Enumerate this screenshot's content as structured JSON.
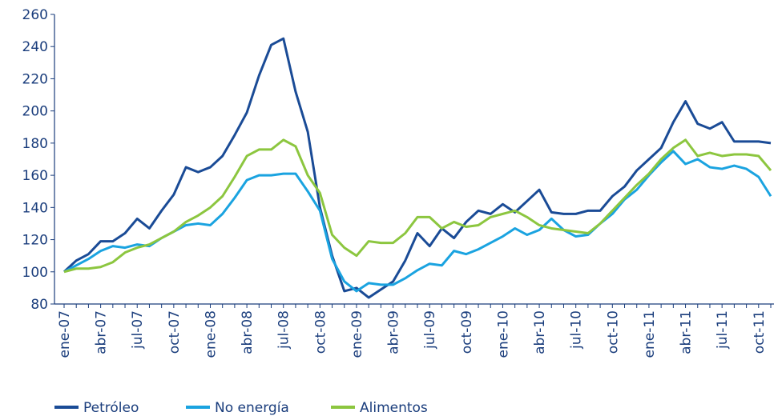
{
  "chart_data": {
    "type": "line",
    "categories": [
      "ene-07",
      null,
      null,
      "abr-07",
      null,
      null,
      "jul-07",
      null,
      null,
      "oct-07",
      null,
      null,
      "ene-08",
      null,
      null,
      "abr-08",
      null,
      null,
      "jul-08",
      null,
      null,
      "oct-08",
      null,
      null,
      "ene-09",
      null,
      null,
      "abr-09",
      null,
      null,
      "jul-09",
      null,
      null,
      "oct-09",
      null,
      null,
      "ene-10",
      null,
      null,
      "abr-10",
      null,
      null,
      "jul-10",
      null,
      null,
      "oct-10",
      null,
      null,
      "ene-11",
      null,
      null,
      "abr-11",
      null,
      null,
      "jul-11",
      null,
      null,
      "oct-11",
      null
    ],
    "series": [
      {
        "name": "Petróleo",
        "color": "#1a4b96",
        "values": [
          100,
          107,
          111,
          119,
          119,
          124,
          133,
          127,
          138,
          148,
          165,
          162,
          165,
          172,
          185,
          199,
          222,
          241,
          245,
          212,
          187,
          140,
          110,
          88,
          90,
          84,
          89,
          94,
          107,
          124,
          116,
          127,
          121,
          131,
          138,
          136,
          142,
          137,
          144,
          151,
          137,
          136,
          136,
          138,
          138,
          147,
          153,
          163,
          170,
          177,
          193,
          206,
          192,
          189,
          193,
          181,
          181,
          181,
          180
        ]
      },
      {
        "name": "No energía",
        "color": "#1aa3e0",
        "values": [
          100,
          104,
          108,
          113,
          116,
          115,
          117,
          116,
          121,
          125,
          129,
          130,
          129,
          136,
          146,
          157,
          160,
          160,
          161,
          161,
          150,
          138,
          108,
          94,
          88,
          93,
          92,
          92,
          96,
          101,
          105,
          104,
          113,
          111,
          114,
          118,
          122,
          127,
          123,
          126,
          133,
          126,
          122,
          123,
          130,
          136,
          145,
          151,
          160,
          168,
          175,
          167,
          170,
          165,
          164,
          166,
          164,
          159,
          147
        ]
      },
      {
        "name": "Alimentos",
        "color": "#8cc63f",
        "values": [
          100,
          102,
          102,
          103,
          106,
          112,
          115,
          117,
          121,
          125,
          131,
          135,
          140,
          147,
          159,
          172,
          176,
          176,
          182,
          178,
          160,
          149,
          123,
          115,
          110,
          119,
          118,
          118,
          124,
          134,
          134,
          127,
          131,
          128,
          129,
          134,
          136,
          138,
          134,
          129,
          127,
          126,
          125,
          124,
          130,
          138,
          146,
          154,
          161,
          170,
          177,
          182,
          172,
          174,
          172,
          173,
          173,
          172,
          163
        ]
      }
    ],
    "ylim": [
      80,
      260
    ],
    "yticks": [
      80,
      100,
      120,
      140,
      160,
      180,
      200,
      220,
      240,
      260
    ],
    "legend": "bottom"
  }
}
